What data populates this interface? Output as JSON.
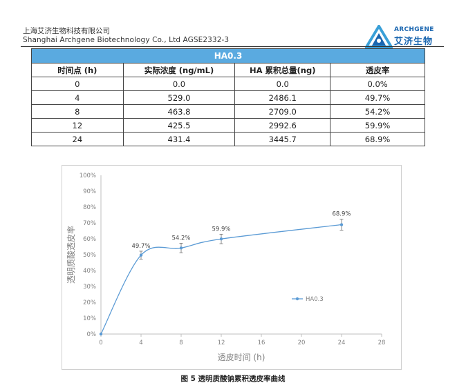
{
  "header": {
    "company_cn": "上海艾济生物科技有限公司",
    "company_en": "Shanghai Archgene Biotechnology Co., Ltd   AGSE2332-3",
    "logo_en": "ARCHGENE",
    "logo_cn": "艾济生物"
  },
  "table": {
    "title": "HA0.3",
    "headers": [
      "时间点  (h)",
      "实际浓度 (ng/mL)",
      "HA 累积总量(ng)",
      "透皮率"
    ],
    "rows": [
      [
        "0",
        "0.0",
        "0.0",
        "0.0%"
      ],
      [
        "4",
        "529.0",
        "2486.1",
        "49.7%"
      ],
      [
        "8",
        "463.8",
        "2709.0",
        "54.2%"
      ],
      [
        "12",
        "425.5",
        "2992.6",
        "59.9%"
      ],
      [
        "24",
        "431.4",
        "3445.7",
        "68.9%"
      ]
    ]
  },
  "chart_data": {
    "type": "line",
    "xlabel": "透皮时间 (h)",
    "ylabel": "透明质酸透皮率",
    "x_ticks": [
      0,
      4,
      8,
      12,
      16,
      20,
      24,
      28
    ],
    "y_ticks": [
      "0%",
      "10%",
      "20%",
      "30%",
      "40%",
      "50%",
      "60%",
      "70%",
      "80%",
      "90%",
      "100%"
    ],
    "xlim": [
      0,
      28
    ],
    "ylim": [
      0,
      100
    ],
    "series": [
      {
        "name": "HA0.3",
        "x": [
          0,
          4,
          8,
          12,
          24
        ],
        "y": [
          0,
          49.7,
          54.2,
          59.9,
          68.9
        ],
        "error": [
          0,
          2.5,
          3,
          3,
          3.5
        ],
        "labels": [
          "",
          "49.7%",
          "54.2%",
          "59.9%",
          "68.9%"
        ],
        "color": "#5b9bd5"
      }
    ],
    "legend_position": "right-middle",
    "grid": false
  },
  "caption": "图 5  透明质酸钠累积透皮率曲线"
}
